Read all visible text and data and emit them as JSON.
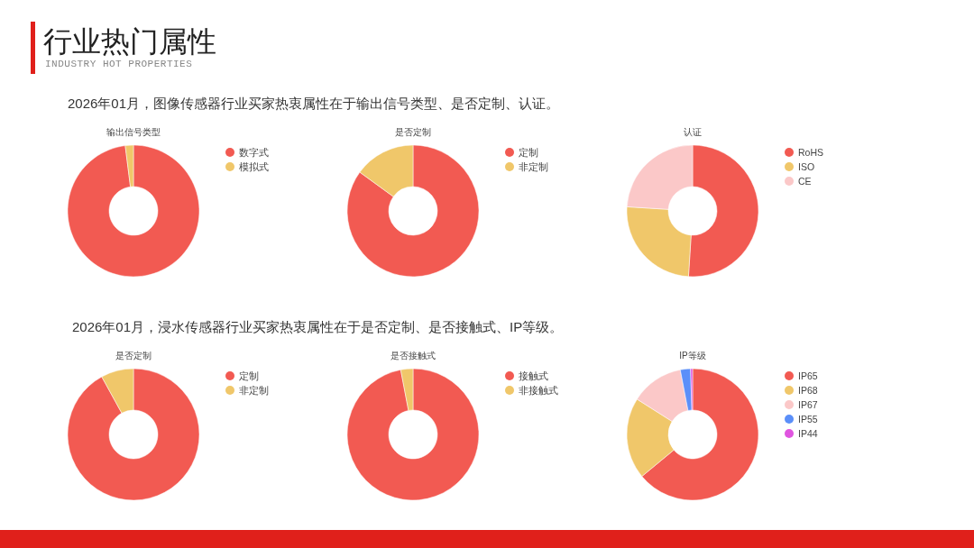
{
  "chart_data": [
    {
      "type": "donut",
      "title": "输出信号类型",
      "subtitle": "2026年01月，图像传感器行业买家热衷属性在于输出信号类型、是否定制、认证。",
      "annotations": [
        "行业热门属性",
        "INDUSTRY HOT PROPERTIES"
      ],
      "legend": "top right",
      "categories": [
        "数字式",
        "模拟式"
      ],
      "values": [
        98,
        2
      ],
      "colors": [
        "#f25a52",
        "#f0c76a"
      ]
    },
    {
      "type": "donut",
      "title": "是否定制",
      "legend": "top right",
      "categories": [
        "定制",
        "非定制"
      ],
      "values": [
        85,
        15
      ],
      "colors": [
        "#f25a52",
        "#f0c76a"
      ]
    },
    {
      "type": "donut",
      "title": "认证",
      "legend": "top right",
      "categories": [
        "RoHS",
        "ISO",
        "CE"
      ],
      "values": [
        51,
        25,
        24
      ],
      "colors": [
        "#f25a52",
        "#f0c76a",
        "#fbc8c8"
      ]
    },
    {
      "type": "donut",
      "title": "是否定制",
      "subtitle": "2026年01月，浸水传感器行业买家热衷属性在于是否定制、是否接触式、IP等级。",
      "legend": "top right",
      "categories": [
        "定制",
        "非定制"
      ],
      "values": [
        92,
        8
      ],
      "colors": [
        "#f25a52",
        "#f0c76a"
      ]
    },
    {
      "type": "donut",
      "title": "是否接触式",
      "legend": "top right",
      "categories": [
        "接触式",
        "非接触式"
      ],
      "values": [
        97,
        3
      ],
      "colors": [
        "#f25a52",
        "#f0c76a"
      ]
    },
    {
      "type": "donut",
      "title": "IP等级",
      "legend": "top right",
      "categories": [
        "IP65",
        "IP68",
        "IP67",
        "IP55",
        "IP44"
      ],
      "values": [
        64,
        20,
        13,
        2.5,
        0.5
      ],
      "colors": [
        "#f25a52",
        "#f0c76a",
        "#fbc8c8",
        "#5b8ff9",
        "#e055e0"
      ]
    }
  ]
}
